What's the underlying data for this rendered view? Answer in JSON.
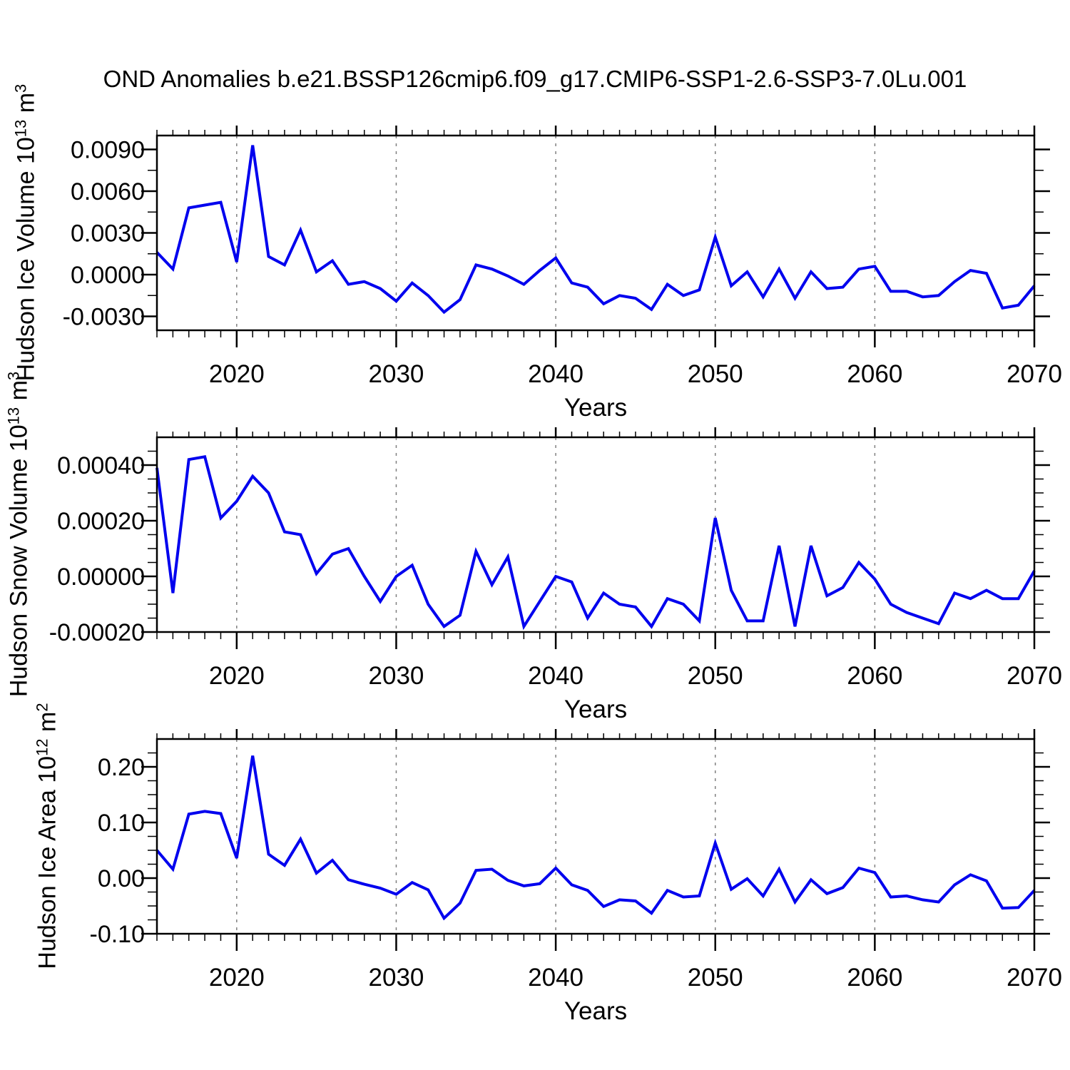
{
  "title": "OND Anomalies b.e21.BSSP126cmip6.f09_g17.CMIP6-SSP1-2.6-SSP3-7.0Lu.001",
  "colors": {
    "line": "#0000EE",
    "grid": "#808080",
    "axis": "#000000",
    "text": "#000000"
  },
  "x": {
    "start_year": 2015,
    "end_year": 2070,
    "step": 1,
    "major_ticks": [
      2020,
      2030,
      2040,
      2050,
      2060,
      2070
    ],
    "major_tick_labels": [
      "2020",
      "2030",
      "2040",
      "2050",
      "2060",
      "2070"
    ]
  },
  "chart_data": [
    {
      "type": "line",
      "ylabel_text": "Hudson Ice Volume 10^13 m^3",
      "ylabel_parts": {
        "base": "Hudson Ice Volume 10",
        "exp": "13",
        "unit": " m",
        "unit_exp": "3"
      },
      "xlabel": "Years",
      "ylim": [
        -0.004,
        0.01
      ],
      "ytick_values": [
        -0.003,
        0.0,
        0.003,
        0.006,
        0.009
      ],
      "ytick_labels": [
        "-0.0030",
        "0.0000",
        "0.0030",
        "0.0060",
        "0.0090"
      ],
      "minor_step": 0.0015,
      "grid": true,
      "values": [
        0.0016,
        0.0004,
        0.0048,
        0.005,
        0.0052,
        0.0009,
        0.0093,
        0.0013,
        0.0007,
        0.0032,
        0.0002,
        0.001,
        -0.0007,
        -0.0005,
        -0.001,
        -0.0019,
        -0.0006,
        -0.0015,
        -0.0027,
        -0.0018,
        0.0007,
        0.0004,
        -0.0001,
        -0.0007,
        0.0003,
        0.0012,
        -0.0006,
        -0.0009,
        -0.0021,
        -0.0015,
        -0.0017,
        -0.0025,
        -0.0007,
        -0.0015,
        -0.0011,
        0.0027,
        -0.0008,
        0.0002,
        -0.0016,
        0.0004,
        -0.0017,
        0.0002,
        -0.001,
        -0.0009,
        0.0004,
        0.0006,
        -0.0012,
        -0.0012,
        -0.0016,
        -0.0015,
        -0.0005,
        0.0003,
        0.0001,
        -0.0024,
        -0.0022,
        -0.0008
      ]
    },
    {
      "type": "line",
      "ylabel_text": "Hudson Snow Volume 10^13 m^3",
      "ylabel_parts": {
        "base": "Hudson Snow Volume 10",
        "exp": "13",
        "unit": " m",
        "unit_exp": "3"
      },
      "xlabel": "Years",
      "ylim": [
        -0.0002,
        0.0005
      ],
      "ytick_values": [
        -0.0002,
        0.0,
        0.0002,
        0.0004
      ],
      "ytick_labels": [
        "-0.00020",
        "0.00000",
        "0.00020",
        "0.00040"
      ],
      "minor_step": 5e-05,
      "grid": true,
      "values": [
        0.00039,
        -6e-05,
        0.00042,
        0.00043,
        0.00021,
        0.00027,
        0.00036,
        0.0003,
        0.00016,
        0.00015,
        1e-05,
        8e-05,
        0.0001,
        0.0,
        -9e-05,
        0.0,
        4e-05,
        -0.0001,
        -0.00018,
        -0.00014,
        9e-05,
        -3e-05,
        7e-05,
        -0.00018,
        -9e-05,
        0.0,
        -2e-05,
        -0.00015,
        -6e-05,
        -0.0001,
        -0.00011,
        -0.00018,
        -8e-05,
        -0.0001,
        -0.00016,
        0.00021,
        -5e-05,
        -0.00016,
        -0.00016,
        0.00011,
        -0.00018,
        0.00011,
        -7e-05,
        -4e-05,
        5e-05,
        -1e-05,
        -0.0001,
        -0.00013,
        -0.00015,
        -0.00017,
        -6e-05,
        -8e-05,
        -5e-05,
        -8e-05,
        -8e-05,
        2e-05
      ]
    },
    {
      "type": "line",
      "ylabel_text": "Hudson Ice Area 10^12 m^2",
      "ylabel_parts": {
        "base": "Hudson Ice Area 10",
        "exp": "12",
        "unit": " m",
        "unit_exp": "2"
      },
      "xlabel": "Years",
      "ylim": [
        -0.1,
        0.25
      ],
      "ytick_values": [
        -0.1,
        0.0,
        0.1,
        0.2
      ],
      "ytick_labels": [
        "-0.10",
        "0.00",
        "0.10",
        "0.20"
      ],
      "minor_step": 0.025,
      "grid": true,
      "values": [
        0.05,
        0.016,
        0.115,
        0.12,
        0.116,
        0.036,
        0.22,
        0.043,
        0.023,
        0.07,
        0.009,
        0.032,
        -0.003,
        -0.011,
        -0.018,
        -0.029,
        -0.008,
        -0.021,
        -0.072,
        -0.045,
        0.014,
        0.016,
        -0.004,
        -0.014,
        -0.01,
        0.018,
        -0.012,
        -0.022,
        -0.051,
        -0.039,
        -0.041,
        -0.063,
        -0.022,
        -0.034,
        -0.032,
        0.063,
        -0.02,
        -0.001,
        -0.032,
        0.016,
        -0.043,
        -0.003,
        -0.028,
        -0.017,
        0.018,
        0.01,
        -0.034,
        -0.032,
        -0.039,
        -0.043,
        -0.012,
        0.006,
        -0.005,
        -0.054,
        -0.053,
        -0.022
      ]
    }
  ]
}
